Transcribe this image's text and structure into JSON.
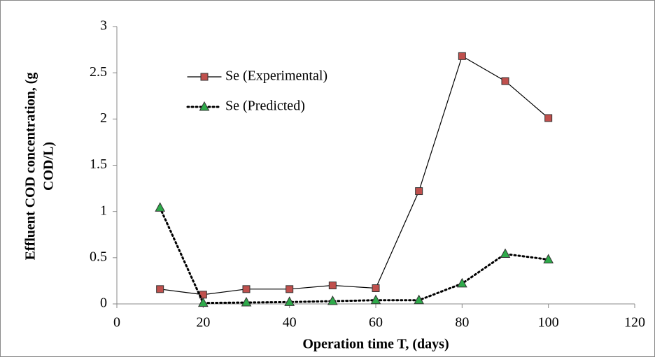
{
  "chart_data": {
    "type": "line",
    "xlabel": "Operation time T, (days)",
    "ylabel_lines": [
      "Effluent COD concentration, (g",
      "COD/L)"
    ],
    "x": [
      10,
      20,
      30,
      40,
      50,
      60,
      70,
      80,
      90,
      100
    ],
    "series": [
      {
        "name": "Se (Experimental)",
        "color": "#c0504d",
        "line_color": "#000000",
        "line_style": "solid",
        "marker": "square",
        "values": [
          0.16,
          0.1,
          0.16,
          0.16,
          0.2,
          0.17,
          1.22,
          2.68,
          2.41,
          2.01
        ]
      },
      {
        "name": "Se (Predicted)",
        "color": "#2eaa4a",
        "line_color": "#000000",
        "line_style": "dotted",
        "marker": "triangle",
        "values": [
          1.04,
          0.01,
          0.015,
          0.02,
          0.03,
          0.04,
          0.04,
          0.22,
          0.54,
          0.48
        ]
      }
    ],
    "xlim": [
      0,
      120
    ],
    "xticks": [
      0,
      20,
      40,
      60,
      80,
      100,
      120
    ],
    "ylim": [
      0,
      3
    ],
    "yticks": [
      0,
      0.5,
      1,
      1.5,
      2,
      2.5,
      3
    ],
    "grid": false,
    "legend": "upper-left"
  }
}
